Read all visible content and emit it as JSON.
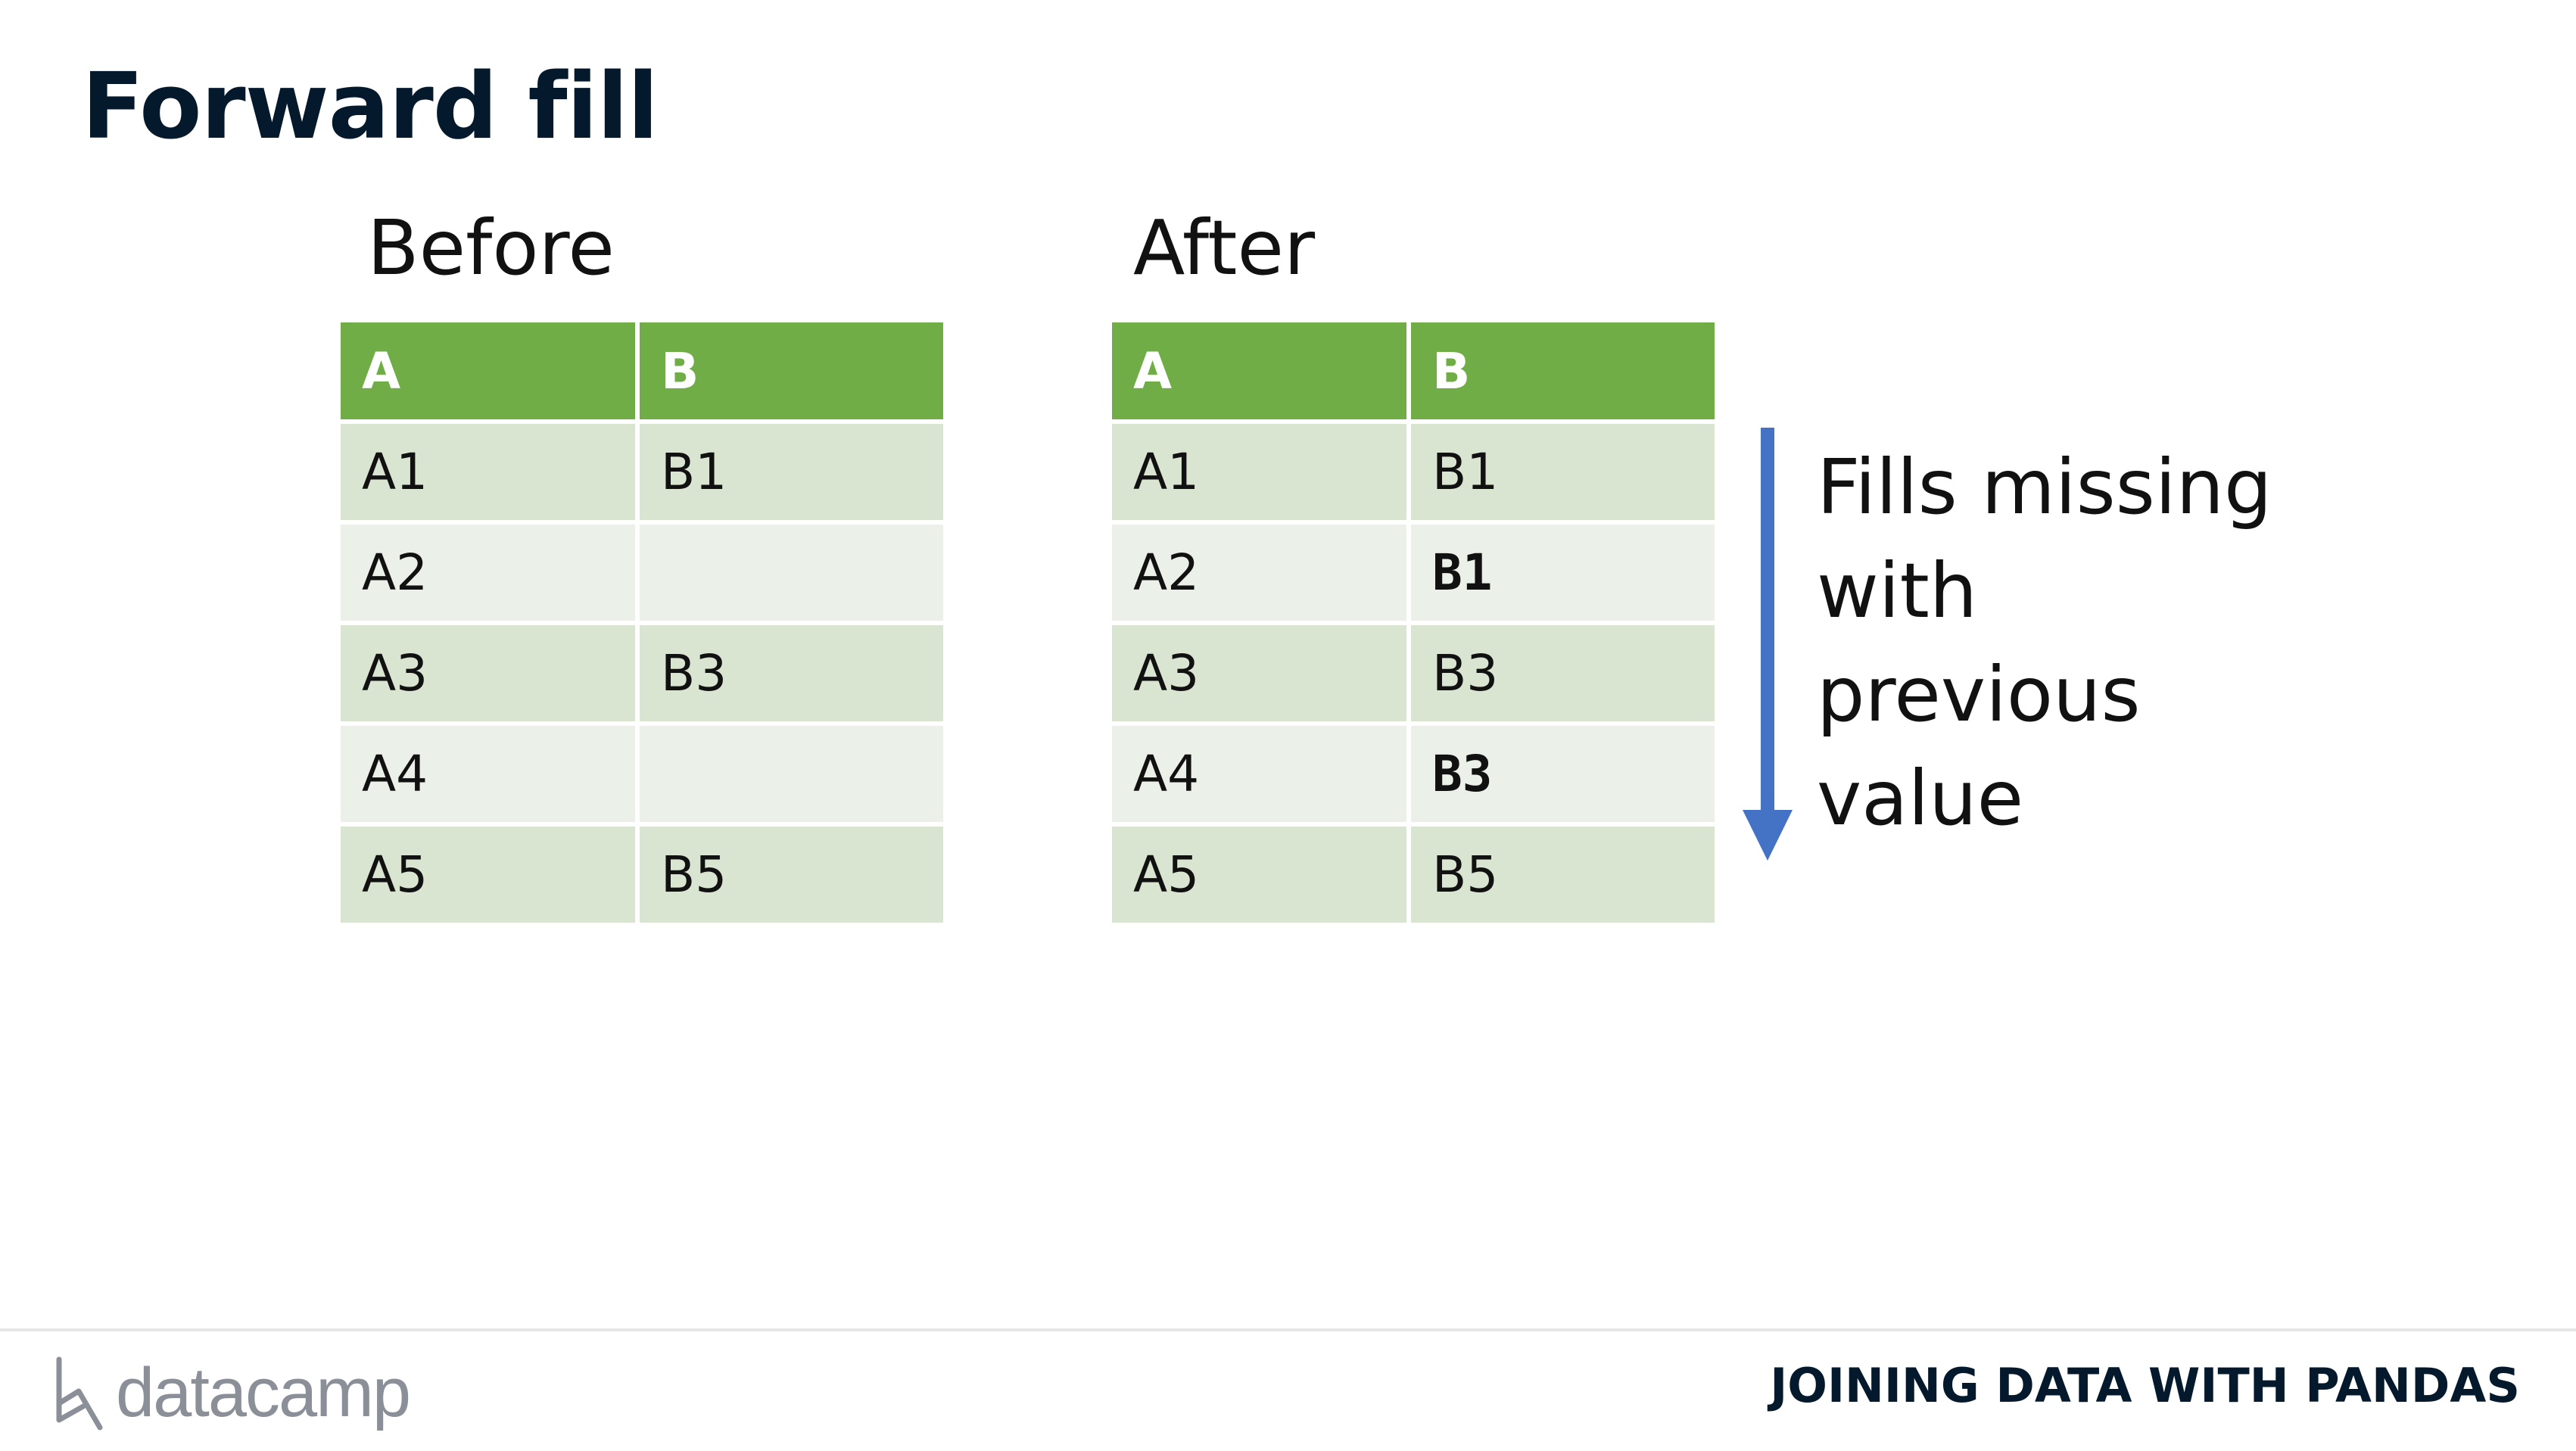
{
  "slide": {
    "title": "Forward fill"
  },
  "before": {
    "caption": "Before",
    "headers": [
      "A",
      "B"
    ],
    "rows": [
      [
        "A1",
        "B1"
      ],
      [
        "A2",
        ""
      ],
      [
        "A3",
        "B3"
      ],
      [
        "A4",
        ""
      ],
      [
        "A5",
        "B5"
      ]
    ]
  },
  "after": {
    "caption": "After",
    "headers": [
      "A",
      "B"
    ],
    "rows": [
      [
        "A1",
        "B1"
      ],
      [
        "A2",
        "B1"
      ],
      [
        "A3",
        "B3"
      ],
      [
        "A4",
        "B3"
      ],
      [
        "A5",
        "B5"
      ]
    ],
    "filled_cells": [
      [
        1,
        1
      ],
      [
        3,
        1
      ]
    ]
  },
  "note": {
    "lines": [
      "Fills missing",
      "with",
      "previous",
      "value"
    ]
  },
  "footer": {
    "brand": "datacamp",
    "course": "JOINING DATA WITH PANDAS"
  },
  "colors": {
    "header_green": "#70ad47",
    "row_dark": "#d9e5d1",
    "row_light": "#ebf0e8",
    "arrow_blue": "#4472c4",
    "title_navy": "#05192d"
  },
  "icons": {
    "arrow": "arrow-down-icon",
    "brand": "datacamp-logo-icon"
  }
}
